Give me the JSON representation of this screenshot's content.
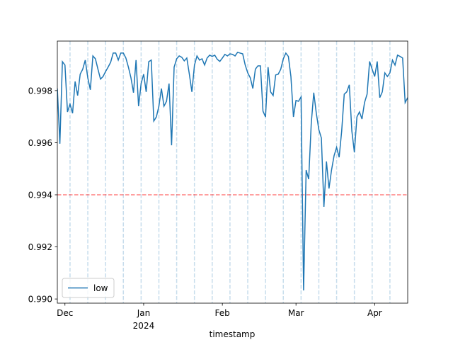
{
  "chart_data": {
    "type": "line",
    "x_label": "timestamp",
    "x": [
      "2023-11-28",
      "2023-11-29",
      "2023-11-30",
      "2023-12-01",
      "2023-12-02",
      "2023-12-03",
      "2023-12-04",
      "2023-12-05",
      "2023-12-06",
      "2023-12-07",
      "2023-12-08",
      "2023-12-09",
      "2023-12-10",
      "2023-12-11",
      "2023-12-12",
      "2023-12-13",
      "2023-12-14",
      "2023-12-15",
      "2023-12-16",
      "2023-12-17",
      "2023-12-18",
      "2023-12-19",
      "2023-12-20",
      "2023-12-21",
      "2023-12-22",
      "2023-12-23",
      "2023-12-24",
      "2023-12-25",
      "2023-12-26",
      "2023-12-27",
      "2023-12-28",
      "2023-12-29",
      "2023-12-30",
      "2023-12-31",
      "2024-01-01",
      "2024-01-02",
      "2024-01-03",
      "2024-01-04",
      "2024-01-05",
      "2024-01-06",
      "2024-01-07",
      "2024-01-08",
      "2024-01-09",
      "2024-01-10",
      "2024-01-11",
      "2024-01-12",
      "2024-01-13",
      "2024-01-14",
      "2024-01-15",
      "2024-01-16",
      "2024-01-17",
      "2024-01-18",
      "2024-01-19",
      "2024-01-20",
      "2024-01-21",
      "2024-01-22",
      "2024-01-23",
      "2024-01-24",
      "2024-01-25",
      "2024-01-26",
      "2024-01-27",
      "2024-01-28",
      "2024-01-29",
      "2024-01-30",
      "2024-01-31",
      "2024-02-01",
      "2024-02-02",
      "2024-02-03",
      "2024-02-04",
      "2024-02-05",
      "2024-02-06",
      "2024-02-07",
      "2024-02-08",
      "2024-02-09",
      "2024-02-10",
      "2024-02-11",
      "2024-02-12",
      "2024-02-13",
      "2024-02-14",
      "2024-02-15",
      "2024-02-16",
      "2024-02-17",
      "2024-02-18",
      "2024-02-19",
      "2024-02-20",
      "2024-02-21",
      "2024-02-22",
      "2024-02-23",
      "2024-02-24",
      "2024-02-25",
      "2024-02-26",
      "2024-02-27",
      "2024-02-28",
      "2024-02-29",
      "2024-03-01",
      "2024-03-02",
      "2024-03-03",
      "2024-03-04",
      "2024-03-05",
      "2024-03-06",
      "2024-03-07",
      "2024-03-08",
      "2024-03-09",
      "2024-03-10",
      "2024-03-11",
      "2024-03-12",
      "2024-03-13",
      "2024-03-14",
      "2024-03-15",
      "2024-03-16",
      "2024-03-17",
      "2024-03-18",
      "2024-03-19",
      "2024-03-20",
      "2024-03-21",
      "2024-03-22",
      "2024-03-23",
      "2024-03-24",
      "2024-03-25",
      "2024-03-26",
      "2024-03-27",
      "2024-03-28",
      "2024-03-29",
      "2024-03-30",
      "2024-03-31",
      "2024-04-01",
      "2024-04-02",
      "2024-04-03",
      "2024-04-04",
      "2024-04-05",
      "2024-04-06",
      "2024-04-07",
      "2024-04-08",
      "2024-04-09",
      "2024-04-10",
      "2024-04-11",
      "2024-04-12",
      "2024-04-13",
      "2024-04-14"
    ],
    "series": [
      {
        "name": "low",
        "color": "#1f77b4",
        "values": [
          0.99808,
          0.99596,
          0.99911,
          0.99898,
          0.99718,
          0.99748,
          0.99713,
          0.99835,
          0.99781,
          0.99863,
          0.99882,
          0.99917,
          0.99849,
          0.99803,
          0.99933,
          0.99922,
          0.99882,
          0.99844,
          0.99854,
          0.99873,
          0.9989,
          0.99909,
          0.99944,
          0.99944,
          0.99917,
          0.99944,
          0.99944,
          0.99925,
          0.9989,
          0.99849,
          0.99792,
          0.99917,
          0.9974,
          0.99827,
          0.99863,
          0.99795,
          0.99911,
          0.99917,
          0.99683,
          0.99699,
          0.9974,
          0.99808,
          0.9974,
          0.99759,
          0.99827,
          0.9959,
          0.9989,
          0.99922,
          0.99933,
          0.99928,
          0.99914,
          0.99925,
          0.99863,
          0.99795,
          0.99897,
          0.99933,
          0.99917,
          0.99922,
          0.99898,
          0.99925,
          0.99936,
          0.99931,
          0.99936,
          0.9992,
          0.99912,
          0.99925,
          0.99939,
          0.99933,
          0.99941,
          0.99939,
          0.99933,
          0.99947,
          0.99944,
          0.99941,
          0.99898,
          0.99868,
          0.99849,
          0.99808,
          0.99882,
          0.99895,
          0.99895,
          0.99721,
          0.99699,
          0.9989,
          0.99795,
          0.99781,
          0.9986,
          0.99863,
          0.99882,
          0.99922,
          0.99944,
          0.99931,
          0.99854,
          0.99699,
          0.99762,
          0.99759,
          0.99776,
          0.99033,
          0.99495,
          0.9946,
          0.99672,
          0.99792,
          0.99713,
          0.9965,
          0.99618,
          0.99354,
          0.99528,
          0.99424,
          0.99495,
          0.9955,
          0.99582,
          0.99544,
          0.99645,
          0.99786,
          0.99795,
          0.99822,
          0.99645,
          0.99563,
          0.99699,
          0.99718,
          0.99691,
          0.99754,
          0.99786,
          0.99912,
          0.99882,
          0.99854,
          0.99912,
          0.99773,
          0.99795,
          0.99868,
          0.99854,
          0.99868,
          0.99917,
          0.99898,
          0.99936,
          0.99931,
          0.99925,
          0.99754,
          0.99773
        ]
      }
    ],
    "xlim": [
      "2023-11-28",
      "2024-04-14"
    ],
    "xticks": [
      {
        "value": "2023-12-01",
        "label": "Dec"
      },
      {
        "value": "2024-01-01",
        "label": "Jan",
        "sublabel": "2024"
      },
      {
        "value": "2024-02-01",
        "label": "Feb"
      },
      {
        "value": "2024-03-01",
        "label": "Mar"
      },
      {
        "value": "2024-04-01",
        "label": "Apr"
      }
    ],
    "ylim": [
      0.98984,
      0.9999
    ],
    "yticks": [
      {
        "value": 0.99,
        "label": "0.990"
      },
      0.992,
      0.994,
      0.996,
      0.998
    ],
    "hline": {
      "value": 0.994,
      "color": "#ff0000"
    },
    "vlines": {
      "color": "#1f77b4",
      "values": [
        "2023-12-03",
        "2023-12-10",
        "2023-12-17",
        "2023-12-24",
        "2023-12-31",
        "2024-01-07",
        "2024-01-14",
        "2024-01-21",
        "2024-01-28",
        "2024-02-04",
        "2024-02-11",
        "2024-02-18",
        "2024-02-25",
        "2024-03-03",
        "2024-03-10",
        "2024-03-17",
        "2024-03-24",
        "2024-03-31",
        "2024-04-07"
      ]
    },
    "legend": "lower left"
  }
}
